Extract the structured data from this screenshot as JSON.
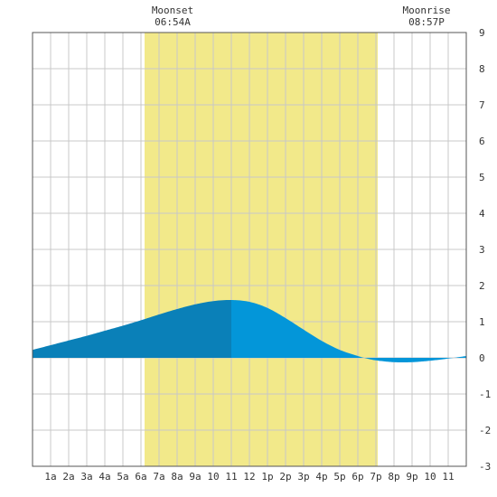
{
  "header": {
    "moonset_label": "Moonset",
    "moonset_time": "06:54A",
    "moonrise_label": "Moonrise",
    "moonrise_time": "08:57P"
  },
  "chart_data": {
    "type": "area",
    "title": "",
    "xlabel": "",
    "ylabel": "",
    "x_unit": "hour of day",
    "xlim": [
      0,
      24
    ],
    "ylim": [
      -3,
      9
    ],
    "grid": true,
    "x_tick_labels": [
      "1a",
      "2a",
      "3a",
      "4a",
      "5a",
      "6a",
      "7a",
      "8a",
      "9a",
      "10",
      "11",
      "12",
      "1p",
      "2p",
      "3p",
      "4p",
      "5p",
      "6p",
      "7p",
      "8p",
      "9p",
      "10",
      "11"
    ],
    "y_ticks": [
      -3,
      -2,
      -1,
      0,
      1,
      2,
      3,
      4,
      5,
      6,
      7,
      8,
      9
    ],
    "x": [
      0,
      1,
      2,
      3,
      4,
      5,
      6,
      7,
      8,
      9,
      10,
      11,
      12,
      13,
      14,
      15,
      16,
      17,
      18,
      18.5,
      19,
      20,
      21,
      22,
      23,
      24
    ],
    "values": [
      0.22,
      0.35,
      0.48,
      0.61,
      0.75,
      0.89,
      1.04,
      1.2,
      1.35,
      1.48,
      1.57,
      1.6,
      1.55,
      1.38,
      1.1,
      0.78,
      0.47,
      0.22,
      0.05,
      -0.02,
      -0.07,
      -0.12,
      -0.12,
      -0.08,
      -0.02,
      0.05
    ],
    "daylight_band": {
      "start": 6.2,
      "end": 19.1
    },
    "high_tide": {
      "x": 11,
      "y": 1.6
    },
    "colors": {
      "daylight": "#f2e98a",
      "grid": "#c8c8c8",
      "tide_before_high": "#0a80b8",
      "tide_after_high": "#0396d9"
    }
  }
}
